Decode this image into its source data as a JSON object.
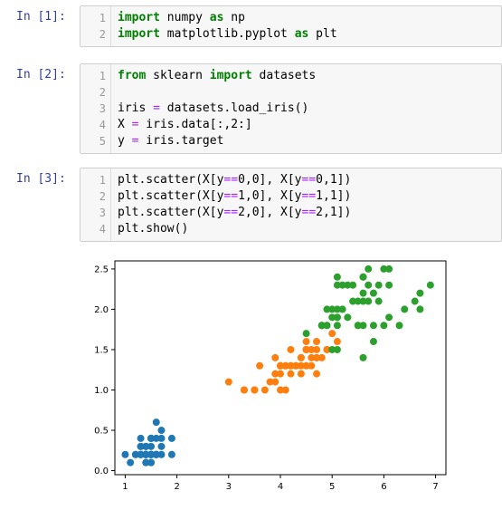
{
  "cells": [
    {
      "prompt": "In [1]:",
      "lines": [
        {
          "n": "1",
          "tokens": [
            {
              "t": "import",
              "c": "kw"
            },
            {
              "t": " numpy ",
              "c": ""
            },
            {
              "t": "as",
              "c": "kw"
            },
            {
              "t": " np",
              "c": ""
            }
          ]
        },
        {
          "n": "2",
          "tokens": [
            {
              "t": "import",
              "c": "kw"
            },
            {
              "t": " matplotlib.pyplot ",
              "c": ""
            },
            {
              "t": "as",
              "c": "kw"
            },
            {
              "t": " plt",
              "c": ""
            }
          ]
        }
      ]
    },
    {
      "prompt": "In [2]:",
      "lines": [
        {
          "n": "1",
          "tokens": [
            {
              "t": "from",
              "c": "kw"
            },
            {
              "t": " sklearn ",
              "c": ""
            },
            {
              "t": "import",
              "c": "kw"
            },
            {
              "t": " datasets",
              "c": ""
            }
          ]
        },
        {
          "n": "2",
          "tokens": []
        },
        {
          "n": "3",
          "tokens": [
            {
              "t": "iris ",
              "c": ""
            },
            {
              "t": "=",
              "c": "op"
            },
            {
              "t": " datasets.load_iris()",
              "c": ""
            }
          ]
        },
        {
          "n": "4",
          "tokens": [
            {
              "t": "X ",
              "c": ""
            },
            {
              "t": "=",
              "c": "op"
            },
            {
              "t": " iris.data[:,2:]",
              "c": ""
            }
          ]
        },
        {
          "n": "5",
          "tokens": [
            {
              "t": "y ",
              "c": ""
            },
            {
              "t": "=",
              "c": "op"
            },
            {
              "t": " iris.target",
              "c": ""
            }
          ]
        }
      ]
    },
    {
      "prompt": "In [3]:",
      "lines": [
        {
          "n": "1",
          "tokens": [
            {
              "t": "plt.scatter(X[y",
              "c": ""
            },
            {
              "t": "==",
              "c": "op"
            },
            {
              "t": "0,0], X[y",
              "c": ""
            },
            {
              "t": "==",
              "c": "op"
            },
            {
              "t": "0,1])",
              "c": ""
            }
          ]
        },
        {
          "n": "2",
          "tokens": [
            {
              "t": "plt.scatter(X[y",
              "c": ""
            },
            {
              "t": "==",
              "c": "op"
            },
            {
              "t": "1,0], X[y",
              "c": ""
            },
            {
              "t": "==",
              "c": "op"
            },
            {
              "t": "1,1])",
              "c": ""
            }
          ]
        },
        {
          "n": "3",
          "tokens": [
            {
              "t": "plt.scatter(X[y",
              "c": ""
            },
            {
              "t": "==",
              "c": "op"
            },
            {
              "t": "2,0], X[y",
              "c": ""
            },
            {
              "t": "==",
              "c": "op"
            },
            {
              "t": "2,1])",
              "c": ""
            }
          ]
        },
        {
          "n": "4",
          "tokens": [
            {
              "t": "plt.show()",
              "c": ""
            }
          ]
        }
      ]
    }
  ],
  "chart_data": {
    "type": "scatter",
    "xlim": [
      0.8,
      7.2
    ],
    "ylim": [
      -0.05,
      2.6
    ],
    "xticks": [
      "1",
      "2",
      "3",
      "4",
      "5",
      "6",
      "7"
    ],
    "yticks": [
      "0.0",
      "0.5",
      "1.0",
      "1.5",
      "2.0",
      "2.5"
    ],
    "grid": false,
    "series": [
      {
        "color": "#1f77b4",
        "points": [
          [
            1.4,
            0.2
          ],
          [
            1.4,
            0.2
          ],
          [
            1.3,
            0.2
          ],
          [
            1.5,
            0.2
          ],
          [
            1.4,
            0.2
          ],
          [
            1.7,
            0.4
          ],
          [
            1.4,
            0.3
          ],
          [
            1.5,
            0.2
          ],
          [
            1.4,
            0.2
          ],
          [
            1.5,
            0.1
          ],
          [
            1.5,
            0.2
          ],
          [
            1.6,
            0.2
          ],
          [
            1.4,
            0.1
          ],
          [
            1.1,
            0.1
          ],
          [
            1.2,
            0.2
          ],
          [
            1.5,
            0.4
          ],
          [
            1.3,
            0.4
          ],
          [
            1.4,
            0.3
          ],
          [
            1.7,
            0.3
          ],
          [
            1.5,
            0.3
          ],
          [
            1.7,
            0.2
          ],
          [
            1.5,
            0.4
          ],
          [
            1.0,
            0.2
          ],
          [
            1.7,
            0.5
          ],
          [
            1.9,
            0.2
          ],
          [
            1.6,
            0.2
          ],
          [
            1.6,
            0.4
          ],
          [
            1.5,
            0.2
          ],
          [
            1.4,
            0.2
          ],
          [
            1.6,
            0.2
          ],
          [
            1.6,
            0.2
          ],
          [
            1.5,
            0.4
          ],
          [
            1.5,
            0.1
          ],
          [
            1.4,
            0.2
          ],
          [
            1.5,
            0.2
          ],
          [
            1.2,
            0.2
          ],
          [
            1.3,
            0.2
          ],
          [
            1.4,
            0.1
          ],
          [
            1.3,
            0.2
          ],
          [
            1.5,
            0.2
          ],
          [
            1.3,
            0.3
          ],
          [
            1.3,
            0.3
          ],
          [
            1.3,
            0.2
          ],
          [
            1.6,
            0.6
          ],
          [
            1.9,
            0.4
          ],
          [
            1.4,
            0.3
          ],
          [
            1.6,
            0.2
          ],
          [
            1.4,
            0.2
          ],
          [
            1.5,
            0.2
          ],
          [
            1.4,
            0.2
          ]
        ]
      },
      {
        "color": "#ff7f0e",
        "points": [
          [
            4.7,
            1.4
          ],
          [
            4.5,
            1.5
          ],
          [
            4.9,
            1.5
          ],
          [
            4.0,
            1.3
          ],
          [
            4.6,
            1.5
          ],
          [
            4.5,
            1.3
          ],
          [
            4.7,
            1.6
          ],
          [
            3.3,
            1.0
          ],
          [
            4.6,
            1.3
          ],
          [
            3.9,
            1.4
          ],
          [
            3.5,
            1.0
          ],
          [
            4.2,
            1.5
          ],
          [
            4.0,
            1.0
          ],
          [
            4.7,
            1.4
          ],
          [
            3.6,
            1.3
          ],
          [
            4.4,
            1.4
          ],
          [
            4.5,
            1.5
          ],
          [
            4.1,
            1.0
          ],
          [
            4.5,
            1.5
          ],
          [
            3.9,
            1.1
          ],
          [
            4.8,
            1.8
          ],
          [
            4.0,
            1.3
          ],
          [
            4.9,
            1.5
          ],
          [
            4.7,
            1.2
          ],
          [
            4.3,
            1.3
          ],
          [
            4.4,
            1.4
          ],
          [
            4.8,
            1.4
          ],
          [
            5.0,
            1.7
          ],
          [
            4.5,
            1.5
          ],
          [
            3.5,
            1.0
          ],
          [
            3.8,
            1.1
          ],
          [
            3.7,
            1.0
          ],
          [
            3.9,
            1.2
          ],
          [
            5.1,
            1.6
          ],
          [
            4.5,
            1.5
          ],
          [
            4.5,
            1.6
          ],
          [
            4.7,
            1.5
          ],
          [
            4.4,
            1.3
          ],
          [
            4.1,
            1.3
          ],
          [
            4.0,
            1.3
          ],
          [
            4.4,
            1.2
          ],
          [
            4.6,
            1.4
          ],
          [
            4.0,
            1.2
          ],
          [
            3.3,
            1.0
          ],
          [
            4.2,
            1.3
          ],
          [
            4.2,
            1.2
          ],
          [
            4.2,
            1.3
          ],
          [
            4.3,
            1.3
          ],
          [
            3.0,
            1.1
          ],
          [
            4.1,
            1.3
          ]
        ]
      },
      {
        "color": "#2ca02c",
        "points": [
          [
            6.0,
            2.5
          ],
          [
            5.1,
            1.9
          ],
          [
            5.9,
            2.1
          ],
          [
            5.6,
            1.8
          ],
          [
            5.8,
            2.2
          ],
          [
            6.6,
            2.1
          ],
          [
            4.5,
            1.7
          ],
          [
            6.3,
            1.8
          ],
          [
            5.8,
            1.8
          ],
          [
            6.1,
            2.5
          ],
          [
            5.1,
            2.0
          ],
          [
            5.3,
            1.9
          ],
          [
            5.5,
            2.1
          ],
          [
            5.0,
            2.0
          ],
          [
            5.1,
            2.4
          ],
          [
            5.3,
            2.3
          ],
          [
            5.5,
            1.8
          ],
          [
            6.7,
            2.2
          ],
          [
            6.9,
            2.3
          ],
          [
            5.0,
            1.5
          ],
          [
            5.7,
            2.3
          ],
          [
            4.9,
            2.0
          ],
          [
            6.7,
            2.0
          ],
          [
            4.9,
            1.8
          ],
          [
            5.7,
            2.1
          ],
          [
            6.0,
            1.8
          ],
          [
            4.8,
            1.8
          ],
          [
            4.9,
            1.8
          ],
          [
            5.6,
            2.1
          ],
          [
            5.8,
            1.6
          ],
          [
            6.1,
            1.9
          ],
          [
            6.4,
            2.0
          ],
          [
            5.6,
            2.2
          ],
          [
            5.1,
            1.5
          ],
          [
            5.6,
            1.4
          ],
          [
            6.1,
            2.3
          ],
          [
            5.6,
            2.4
          ],
          [
            5.5,
            1.8
          ],
          [
            4.8,
            1.8
          ],
          [
            5.4,
            2.1
          ],
          [
            5.6,
            2.4
          ],
          [
            5.1,
            2.3
          ],
          [
            5.1,
            1.9
          ],
          [
            5.9,
            2.3
          ],
          [
            5.7,
            2.5
          ],
          [
            5.2,
            2.3
          ],
          [
            5.0,
            1.9
          ],
          [
            5.2,
            2.0
          ],
          [
            5.4,
            2.3
          ],
          [
            5.1,
            1.8
          ]
        ]
      }
    ]
  }
}
